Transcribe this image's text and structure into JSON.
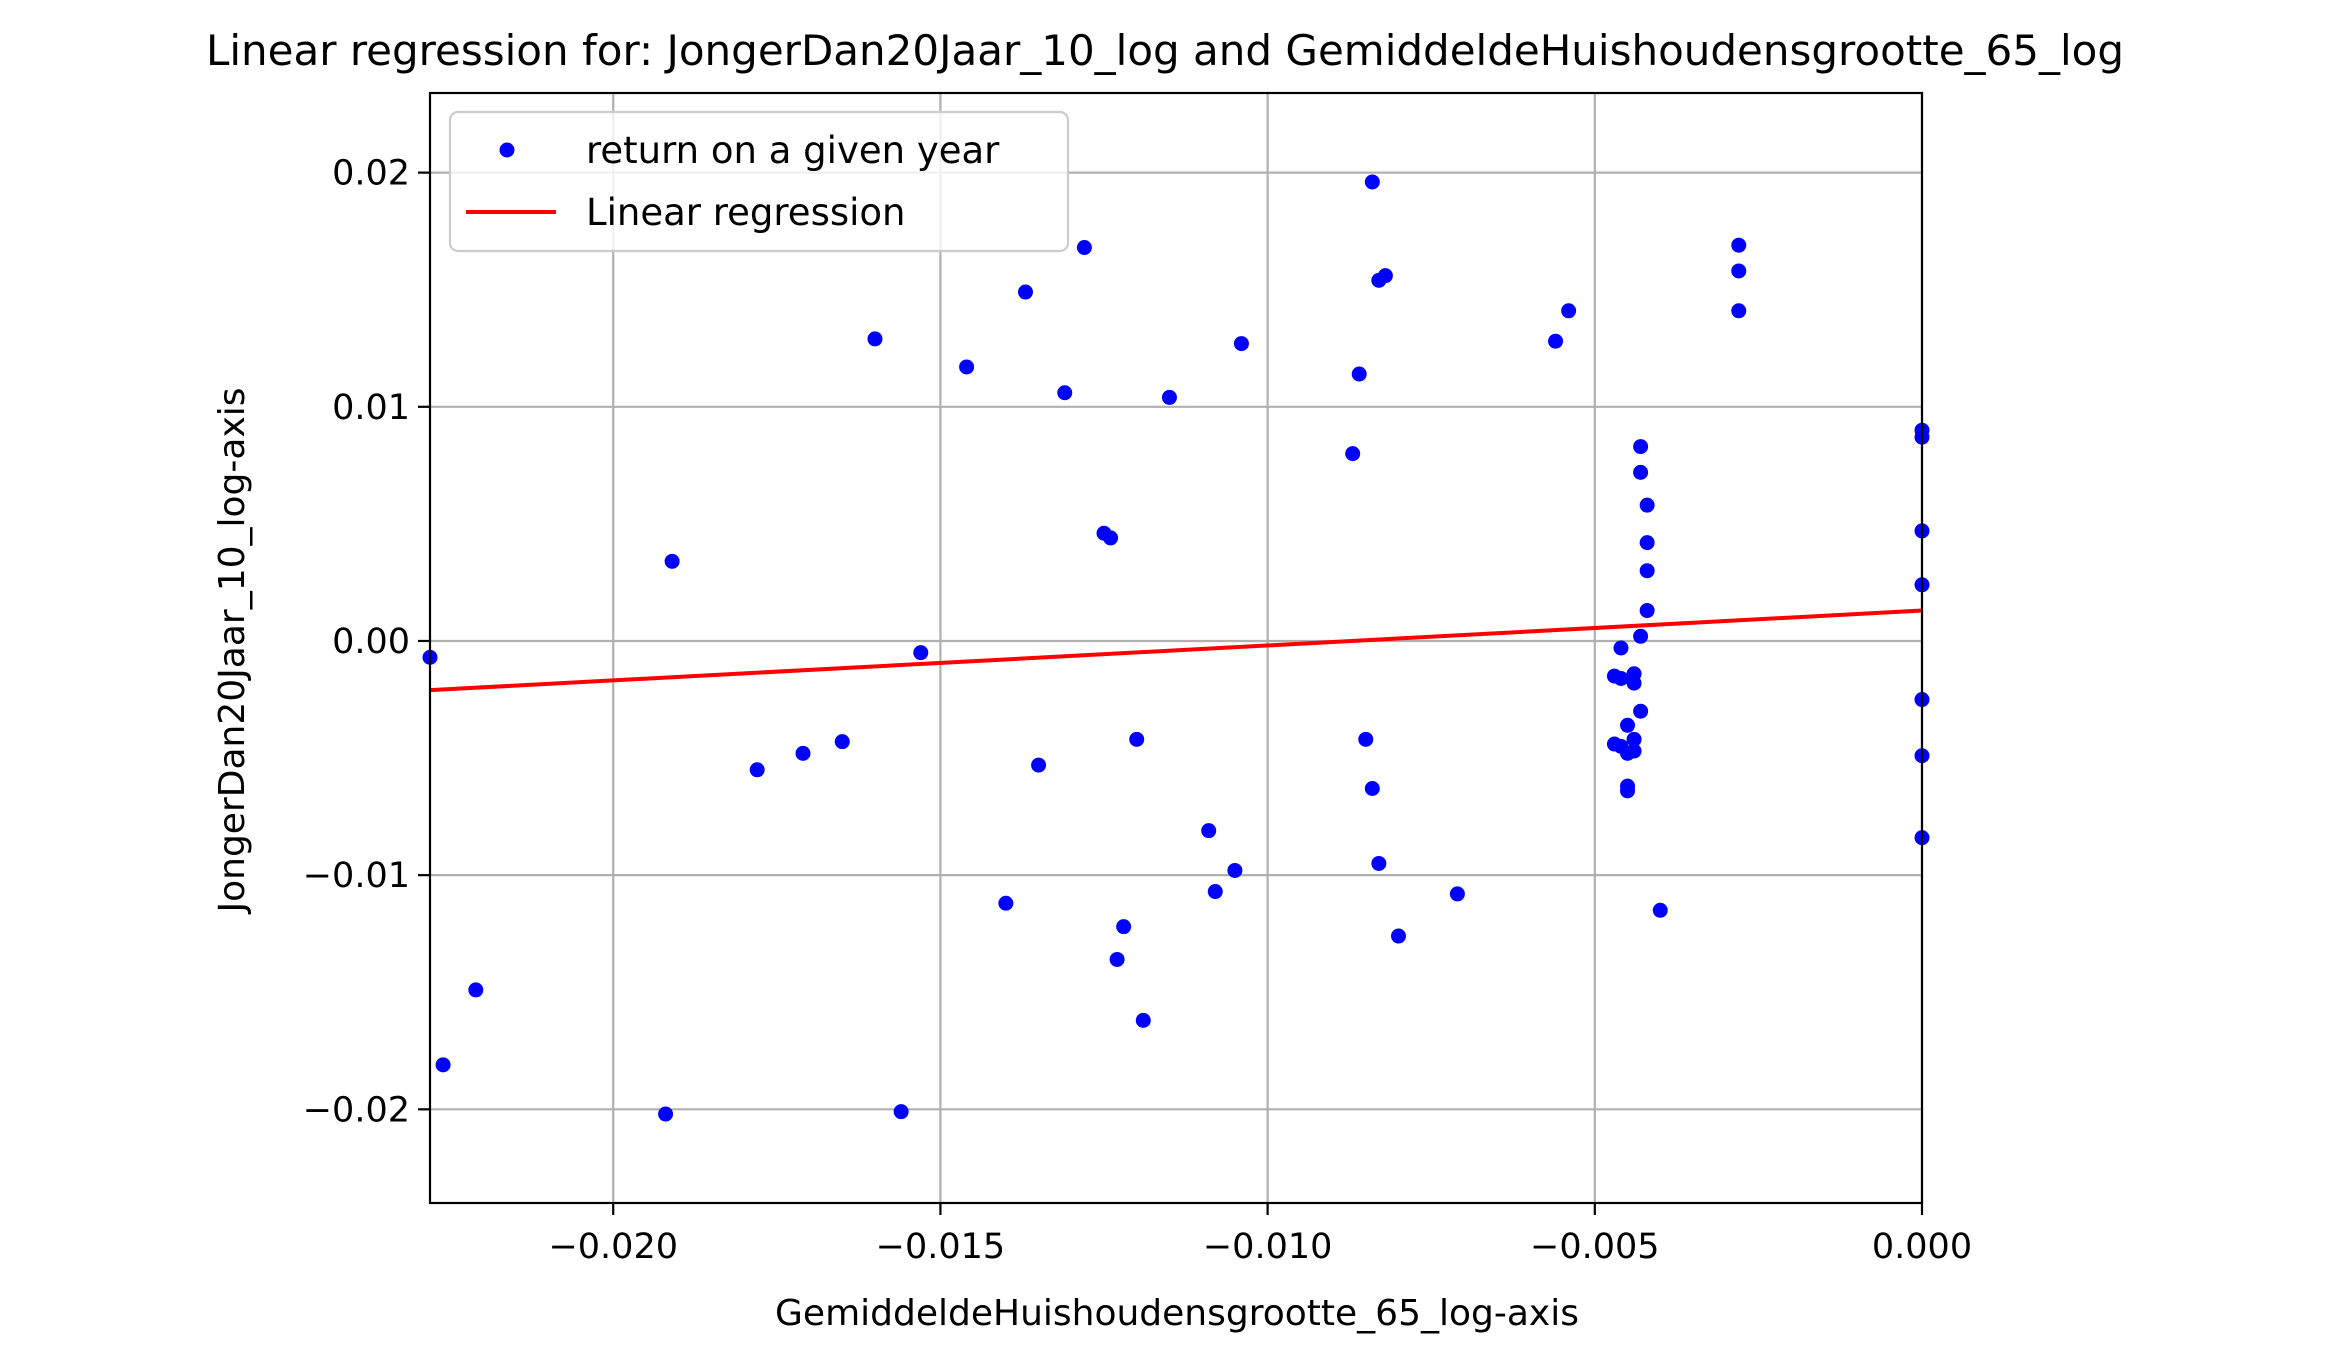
{
  "chart_data": {
    "type": "scatter",
    "title": "Linear regression for: JongerDan20Jaar_10_log and GemiddeldeHuishoudensgrootte_65_log",
    "xlabel": "GemiddeldeHuishoudensgrootte_65_log-axis",
    "ylabel": "JongerDan20Jaar_10_log-axis",
    "xlim": [
      -0.0228,
      0.0
    ],
    "ylim": [
      -0.024,
      0.0234
    ],
    "grid": true,
    "legend_position": "upper-left",
    "x_ticks": [
      {
        "value": -0.02,
        "label": "−0.020"
      },
      {
        "value": -0.015,
        "label": "−0.015"
      },
      {
        "value": -0.01,
        "label": "−0.010"
      },
      {
        "value": -0.005,
        "label": "−0.005"
      },
      {
        "value": 0.0,
        "label": "0.000"
      }
    ],
    "y_ticks": [
      {
        "value": 0.02,
        "label": "0.02"
      },
      {
        "value": 0.01,
        "label": "0.01"
      },
      {
        "value": 0.0,
        "label": "0.00"
      },
      {
        "value": -0.01,
        "label": "−0.01"
      },
      {
        "value": -0.02,
        "label": "−0.02"
      }
    ],
    "series": [
      {
        "name": "return on a given year",
        "kind": "scatter",
        "color": "#0000ff",
        "points": [
          [
            -0.0228,
            -0.0007
          ],
          [
            -0.0226,
            -0.0181
          ],
          [
            -0.0221,
            -0.0149
          ],
          [
            -0.0192,
            -0.0202
          ],
          [
            -0.0191,
            0.0034
          ],
          [
            -0.0178,
            -0.0055
          ],
          [
            -0.0171,
            -0.0048
          ],
          [
            -0.0165,
            -0.0043
          ],
          [
            -0.016,
            0.0129
          ],
          [
            -0.0156,
            -0.0201
          ],
          [
            -0.0153,
            -0.0005
          ],
          [
            -0.0146,
            0.0117
          ],
          [
            -0.014,
            -0.0112
          ],
          [
            -0.0137,
            0.0149
          ],
          [
            -0.0135,
            -0.0053
          ],
          [
            -0.0131,
            0.0106
          ],
          [
            -0.0128,
            0.0168
          ],
          [
            -0.0125,
            0.0046
          ],
          [
            -0.0124,
            0.0044
          ],
          [
            -0.0123,
            -0.0136
          ],
          [
            -0.0122,
            -0.0122
          ],
          [
            -0.012,
            -0.0042
          ],
          [
            -0.0119,
            -0.0162
          ],
          [
            -0.0115,
            0.0104
          ],
          [
            -0.0109,
            -0.0081
          ],
          [
            -0.0108,
            -0.0107
          ],
          [
            -0.0105,
            -0.0098
          ],
          [
            -0.0104,
            0.0127
          ],
          [
            -0.0087,
            0.008
          ],
          [
            -0.0086,
            0.0114
          ],
          [
            -0.0085,
            -0.0042
          ],
          [
            -0.0084,
            -0.0063
          ],
          [
            -0.0084,
            0.0196
          ],
          [
            -0.0083,
            0.0154
          ],
          [
            -0.0083,
            -0.0095
          ],
          [
            -0.0082,
            0.0156
          ],
          [
            -0.008,
            -0.0126
          ],
          [
            -0.0071,
            -0.0108
          ],
          [
            -0.0056,
            0.0128
          ],
          [
            -0.0054,
            0.0141
          ],
          [
            -0.0047,
            -0.0015
          ],
          [
            -0.0047,
            -0.0044
          ],
          [
            -0.0046,
            -0.0003
          ],
          [
            -0.0046,
            -0.0016
          ],
          [
            -0.0046,
            -0.0045
          ],
          [
            -0.0045,
            -0.0062
          ],
          [
            -0.0045,
            -0.0064
          ],
          [
            -0.0045,
            -0.0048
          ],
          [
            -0.0045,
            -0.0036
          ],
          [
            -0.0044,
            -0.0014
          ],
          [
            -0.0044,
            -0.0018
          ],
          [
            -0.0044,
            -0.0042
          ],
          [
            -0.0044,
            -0.0047
          ],
          [
            -0.0043,
            -0.003
          ],
          [
            -0.0043,
            0.0002
          ],
          [
            -0.0043,
            0.0072
          ],
          [
            -0.0043,
            0.0083
          ],
          [
            -0.0042,
            0.0058
          ],
          [
            -0.0042,
            0.0042
          ],
          [
            -0.0042,
            0.003
          ],
          [
            -0.0042,
            0.0013
          ],
          [
            -0.004,
            -0.0115
          ],
          [
            -0.0028,
            0.0169
          ],
          [
            -0.0028,
            0.0158
          ],
          [
            -0.0028,
            0.0141
          ],
          [
            0.0,
            0.009
          ],
          [
            0.0,
            0.0087
          ],
          [
            0.0,
            0.0047
          ],
          [
            0.0,
            0.0024
          ],
          [
            0.0,
            -0.0025
          ],
          [
            0.0,
            -0.0049
          ],
          [
            0.0,
            -0.0084
          ]
        ]
      },
      {
        "name": "Linear regression",
        "kind": "line",
        "color": "#ff0000",
        "points": [
          [
            -0.0228,
            -0.0021
          ],
          [
            0.0,
            0.0013
          ]
        ]
      }
    ]
  }
}
